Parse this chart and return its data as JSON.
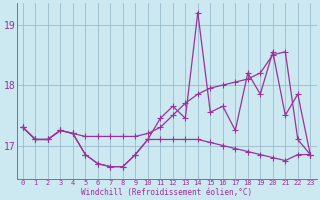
{
  "xlabel": "Windchill (Refroidissement éolien,°C)",
  "x": [
    0,
    1,
    2,
    3,
    4,
    5,
    6,
    7,
    8,
    9,
    10,
    11,
    12,
    13,
    14,
    15,
    16,
    17,
    18,
    19,
    20,
    21,
    22,
    23
  ],
  "line_jagged": [
    17.3,
    17.1,
    17.1,
    17.25,
    17.2,
    16.85,
    16.7,
    16.65,
    16.65,
    16.85,
    17.1,
    17.45,
    17.65,
    17.45,
    19.2,
    17.55,
    17.65,
    17.25,
    18.2,
    17.85,
    18.55,
    17.5,
    17.85,
    16.85
  ],
  "line_trend": [
    17.3,
    17.1,
    17.1,
    17.25,
    17.2,
    17.15,
    17.15,
    17.15,
    17.15,
    17.15,
    17.2,
    17.3,
    17.5,
    17.7,
    17.85,
    17.95,
    18.0,
    18.05,
    18.1,
    18.2,
    18.5,
    18.55,
    17.1,
    16.85
  ],
  "line_flat": [
    17.3,
    17.1,
    17.1,
    17.25,
    17.2,
    16.85,
    16.7,
    16.65,
    16.65,
    16.85,
    17.1,
    17.1,
    17.1,
    17.1,
    17.1,
    17.05,
    17.0,
    16.95,
    16.9,
    16.85,
    16.8,
    16.75,
    16.85,
    16.85
  ],
  "bg_color": "#cce8f0",
  "line_color": "#993399",
  "grid_color": "#99bbcc",
  "ylim_min": 16.45,
  "ylim_max": 19.35,
  "yticks": [
    17,
    18,
    19
  ],
  "xlim_min": -0.5,
  "xlim_max": 23.5
}
